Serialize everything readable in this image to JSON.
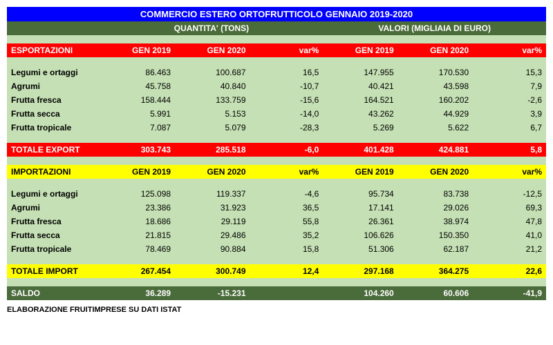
{
  "title": "COMMERCIO ESTERO ORTOFRUTTICOLO GENNAIO 2019-2020",
  "group_headers": {
    "qty": "QUANTITA' (TONS)",
    "val": "VALORI (MIGLIAIA DI EURO)"
  },
  "cols": {
    "c1": "GEN 2019",
    "c2": "GEN 2020",
    "c3": "var%"
  },
  "export": {
    "label": "ESPORTAZIONI",
    "rows": [
      {
        "name": "Legumi e ortaggi",
        "q1": "86.463",
        "q2": "100.687",
        "qv": "16,5",
        "v1": "147.955",
        "v2": "170.530",
        "vv": "15,3"
      },
      {
        "name": "Agrumi",
        "q1": "45.758",
        "q2": "40.840",
        "qv": "-10,7",
        "v1": "40.421",
        "v2": "43.598",
        "vv": "7,9"
      },
      {
        "name": "Frutta fresca",
        "q1": "158.444",
        "q2": "133.759",
        "qv": "-15,6",
        "v1": "164.521",
        "v2": "160.202",
        "vv": "-2,6"
      },
      {
        "name": "Frutta secca",
        "q1": "5.991",
        "q2": "5.153",
        "qv": "-14,0",
        "v1": "43.262",
        "v2": "44.929",
        "vv": "3,9"
      },
      {
        "name": "Frutta tropicale",
        "q1": "7.087",
        "q2": "5.079",
        "qv": "-28,3",
        "v1": "5.269",
        "v2": "5.622",
        "vv": "6,7"
      }
    ],
    "total": {
      "name": "TOTALE EXPORT",
      "q1": "303.743",
      "q2": "285.518",
      "qv": "-6,0",
      "v1": "401.428",
      "v2": "424.881",
      "vv": "5,8"
    }
  },
  "import": {
    "label": "IMPORTAZIONI",
    "rows": [
      {
        "name": "Legumi e ortaggi",
        "q1": "125.098",
        "q2": "119.337",
        "qv": "-4,6",
        "v1": "95.734",
        "v2": "83.738",
        "vv": "-12,5"
      },
      {
        "name": "Agrumi",
        "q1": "23.386",
        "q2": "31.923",
        "qv": "36,5",
        "v1": "17.141",
        "v2": "29.026",
        "vv": "69,3"
      },
      {
        "name": "Frutta fresca",
        "q1": "18.686",
        "q2": "29.119",
        "qv": "55,8",
        "v1": "26.361",
        "v2": "38.974",
        "vv": "47,8"
      },
      {
        "name": "Frutta secca",
        "q1": "21.815",
        "q2": "29.486",
        "qv": "35,2",
        "v1": "106.626",
        "v2": "150.350",
        "vv": "41,0"
      },
      {
        "name": "Frutta tropicale",
        "q1": "78.469",
        "q2": "90.884",
        "qv": "15,8",
        "v1": "51.306",
        "v2": "62.187",
        "vv": "21,2"
      }
    ],
    "total": {
      "name": "TOTALE IMPORT",
      "q1": "267.454",
      "q2": "300.749",
      "qv": "12,4",
      "v1": "297.168",
      "v2": "364.275",
      "vv": "22,6"
    }
  },
  "saldo": {
    "name": "SALDO",
    "q1": "36.289",
    "q2": "-15.231",
    "qv": "",
    "v1": "104.260",
    "v2": "60.606",
    "vv": "-41,9"
  },
  "footer": "ELABORAZIONE FRUITIMPRESE SU DATI ISTAT",
  "colors": {
    "title_bg": "#0000FF",
    "group_bg": "#4a6b3a",
    "red_bg": "#ff0000",
    "yellow_bg": "#ffff00",
    "body_bg": "#c5e0b4",
    "saldo_bg": "#4a6b3a"
  }
}
